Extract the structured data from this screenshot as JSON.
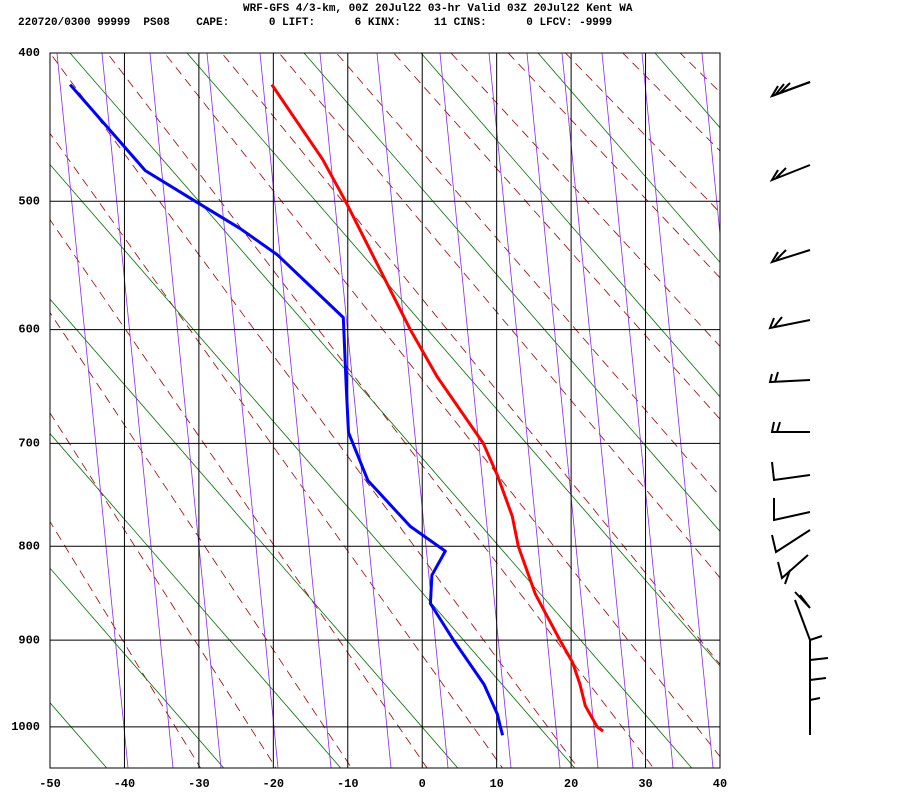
{
  "chart_data": {
    "type": "skewt",
    "title": "WRF-GFS 4/3-km, 00Z 20Jul22 03-hr Valid 03Z 20Jul22 Kent WA",
    "subtitle": "220720/0300 99999  PS08    CAPE:      0 LIFT:      6 KINX:     11 CINS:      0 LFCV: -9999",
    "xlim": [
      -50,
      40
    ],
    "xticks": [
      -50,
      -40,
      -30,
      -20,
      -10,
      0,
      10,
      20,
      30,
      40
    ],
    "ylim": [
      400,
      1050
    ],
    "yticks": [
      400,
      500,
      600,
      700,
      800,
      900,
      1000
    ],
    "grid": true,
    "series": [
      {
        "color": "#ff0000",
        "x": [
          -20.2,
          -13.4,
          -10.3,
          -1.6,
          2.0,
          8.2,
          10.1,
          12.1,
          12.9,
          15.2,
          18.5,
          20.2,
          21.2,
          21.9,
          23.5,
          24.3
        ],
        "y": [
          420,
          470,
          500,
          600,
          640,
          700,
          730,
          770,
          800,
          850,
          900,
          925,
          950,
          975,
          1000,
          1005
        ]
      },
      {
        "color": "#0000ff",
        "x": [
          -47.3,
          -37.2,
          -30.5,
          -24.5,
          -19.5,
          -10.6,
          -10.2,
          -9.9,
          -7.3,
          -1.6,
          3.1,
          1.3,
          1.1,
          4.2,
          8.3,
          10.1,
          10.5,
          10.8
        ],
        "y": [
          420,
          478,
          500,
          520,
          540,
          590,
          650,
          690,
          735,
          780,
          805,
          830,
          860,
          900,
          950,
          985,
          1000,
          1010
        ]
      }
    ]
  }
}
